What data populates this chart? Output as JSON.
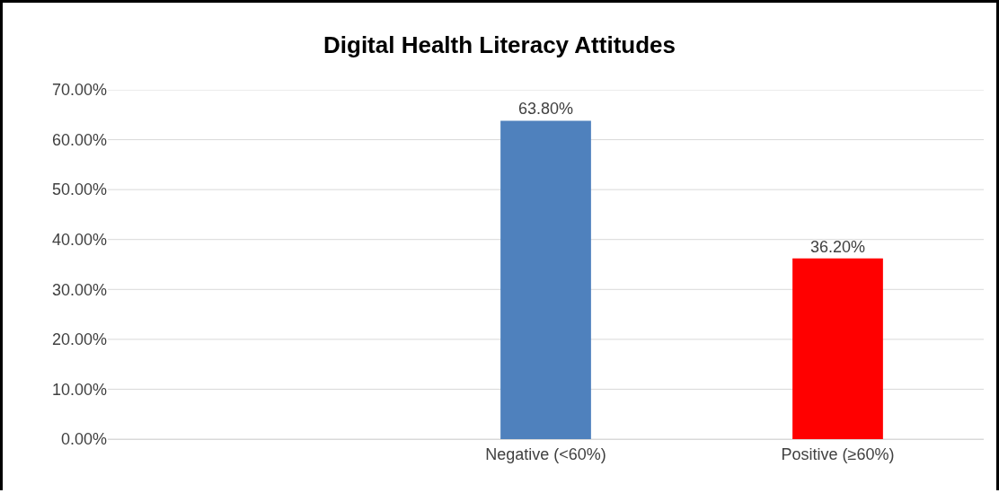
{
  "chart_data": {
    "type": "bar",
    "title": "Digital Health Literacy Attitudes",
    "categories": [
      null,
      "Negative (<60%)",
      "Positive (≥60%)"
    ],
    "values": [
      null,
      63.8,
      36.2
    ],
    "colors": [
      "#4f81bd",
      "#4f81bd",
      "#ff0000"
    ],
    "value_labels": [
      null,
      "63.80%",
      "36.20%"
    ],
    "ylim": [
      0,
      70
    ],
    "yticks": [
      {
        "value": 0,
        "label": "0.00%"
      },
      {
        "value": 10,
        "label": "10.00%"
      },
      {
        "value": 20,
        "label": "20.00%"
      },
      {
        "value": 30,
        "label": "30.00%"
      },
      {
        "value": 40,
        "label": "40.00%"
      },
      {
        "value": 50,
        "label": "50.00%"
      },
      {
        "value": 60,
        "label": "60.00%"
      },
      {
        "value": 70,
        "label": "70.00%"
      }
    ],
    "grid": "y"
  }
}
